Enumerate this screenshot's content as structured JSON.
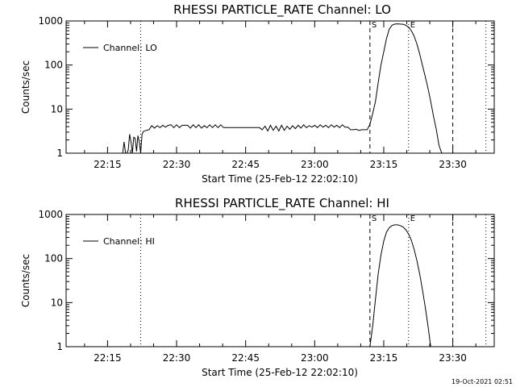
{
  "footer_stamp": "19-Oct-2021 02:51",
  "chart_data": [
    {
      "type": "line",
      "title": "RHESSI PARTICLE_RATE Channel: LO",
      "xlabel": "Start Time (25-Feb-12 22:02:10)",
      "ylabel": "Counts/sec",
      "yscale": "log",
      "xlim": [
        22.1,
        23.65
      ],
      "ylim": [
        1,
        1000
      ],
      "x_ticks": [
        {
          "value": 22.25,
          "label": "22:15"
        },
        {
          "value": 22.5,
          "label": "22:30"
        },
        {
          "value": 22.75,
          "label": "22:45"
        },
        {
          "value": 23.0,
          "label": "23:00"
        },
        {
          "value": 23.25,
          "label": "23:15"
        },
        {
          "value": 23.5,
          "label": "23:30"
        }
      ],
      "y_ticks": [
        {
          "value": 1,
          "label": "1"
        },
        {
          "value": 10,
          "label": "10"
        },
        {
          "value": 100,
          "label": "100"
        },
        {
          "value": 1000,
          "label": "1000"
        }
      ],
      "legend": {
        "label": "Channel: LO",
        "placement": "top-left"
      },
      "vlines": [
        {
          "x": 22.37,
          "style": "dotted",
          "label": ""
        },
        {
          "x": 23.2,
          "style": "dashed",
          "label": "S"
        },
        {
          "x": 23.34,
          "style": "dotted",
          "label": "E"
        },
        {
          "x": 23.5,
          "style": "dashed",
          "label": ""
        },
        {
          "x": 23.62,
          "style": "dotted",
          "label": ""
        }
      ],
      "series": [
        {
          "name": "Channel: LO",
          "x": [
            22.3,
            22.305,
            22.31,
            22.315,
            22.32,
            22.325,
            22.33,
            22.335,
            22.34,
            22.345,
            22.35,
            22.355,
            22.36,
            22.365,
            22.37,
            22.375,
            22.38,
            22.39,
            22.4,
            22.41,
            22.42,
            22.43,
            22.44,
            22.45,
            22.46,
            22.47,
            22.48,
            22.49,
            22.5,
            22.51,
            22.52,
            22.53,
            22.54,
            22.55,
            22.56,
            22.57,
            22.58,
            22.59,
            22.6,
            22.61,
            22.62,
            22.63,
            22.64,
            22.65,
            22.66,
            22.67,
            22.68,
            22.69,
            22.7,
            22.72,
            22.74,
            22.76,
            22.78,
            22.8,
            22.81,
            22.82,
            22.83,
            22.84,
            22.85,
            22.86,
            22.87,
            22.88,
            22.89,
            22.9,
            22.91,
            22.92,
            22.93,
            22.94,
            22.95,
            22.96,
            22.97,
            22.98,
            22.99,
            23.0,
            23.01,
            23.02,
            23.03,
            23.04,
            23.05,
            23.06,
            23.07,
            23.08,
            23.09,
            23.1,
            23.11,
            23.12,
            23.13,
            23.14,
            23.15,
            23.16,
            23.17,
            23.18,
            23.19,
            23.2,
            23.21,
            23.22,
            23.23,
            23.24,
            23.25,
            23.26,
            23.27,
            23.28,
            23.29,
            23.3,
            23.31,
            23.32,
            23.33,
            23.34,
            23.35,
            23.36,
            23.37,
            23.38,
            23.39,
            23.4,
            23.41,
            23.42,
            23.43,
            23.44,
            23.45,
            23.46,
            23.47,
            23.48,
            23.49,
            23.5
          ],
          "y": [
            1,
            1,
            1.8,
            1,
            1,
            1.2,
            2.7,
            1.8,
            1,
            2.3,
            2.2,
            1.1,
            2.5,
            1.8,
            1,
            2.7,
            3.1,
            3.3,
            3.4,
            4.2,
            3.7,
            4.2,
            3.8,
            4.3,
            3.9,
            4.3,
            4.4,
            3.8,
            4.4,
            3.8,
            4.3,
            4.3,
            4.3,
            3.7,
            4.4,
            3.8,
            4.4,
            3.7,
            4.2,
            3.8,
            4.4,
            3.8,
            4.4,
            3.8,
            4.4,
            3.8,
            3.8,
            3.8,
            3.8,
            3.8,
            3.8,
            3.8,
            3.8,
            3.8,
            3.4,
            4.1,
            3.2,
            4.3,
            3.3,
            4.1,
            3.2,
            4.3,
            3.3,
            4.1,
            3.5,
            4.2,
            3.6,
            4.3,
            3.7,
            4.4,
            3.8,
            4.2,
            3.9,
            4.3,
            3.8,
            4.4,
            3.9,
            4.3,
            3.8,
            4.4,
            3.9,
            4.3,
            3.8,
            4.4,
            3.9,
            3.9,
            3.4,
            3.4,
            3.5,
            3.3,
            3.4,
            3.4,
            3.4,
            4.5,
            8,
            15,
            40,
            100,
            200,
            400,
            650,
            800,
            850,
            860,
            850,
            840,
            800,
            720,
            600,
            450,
            300,
            180,
            100,
            55,
            30,
            15,
            7,
            3.5,
            1.5,
            1,
            1,
            1,
            1,
            1
          ]
        }
      ]
    },
    {
      "type": "line",
      "title": "RHESSI PARTICLE_RATE Channel: HI",
      "xlabel": "Start Time (25-Feb-12 22:02:10)",
      "ylabel": "Counts/sec",
      "yscale": "log",
      "xlim": [
        22.1,
        23.65
      ],
      "ylim": [
        1,
        1000
      ],
      "x_ticks": [
        {
          "value": 22.25,
          "label": "22:15"
        },
        {
          "value": 22.5,
          "label": "22:30"
        },
        {
          "value": 22.75,
          "label": "22:45"
        },
        {
          "value": 23.0,
          "label": "23:00"
        },
        {
          "value": 23.25,
          "label": "23:15"
        },
        {
          "value": 23.5,
          "label": "23:30"
        }
      ],
      "y_ticks": [
        {
          "value": 1,
          "label": "1"
        },
        {
          "value": 10,
          "label": "10"
        },
        {
          "value": 100,
          "label": "100"
        },
        {
          "value": 1000,
          "label": "1000"
        }
      ],
      "legend": {
        "label": "Channel: HI",
        "placement": "top-left"
      },
      "vlines": [
        {
          "x": 22.37,
          "style": "dotted",
          "label": ""
        },
        {
          "x": 23.2,
          "style": "dashed",
          "label": "S"
        },
        {
          "x": 23.34,
          "style": "dotted",
          "label": "E"
        },
        {
          "x": 23.5,
          "style": "dashed",
          "label": ""
        },
        {
          "x": 23.62,
          "style": "dotted",
          "label": ""
        }
      ],
      "series": [
        {
          "name": "Channel: HI",
          "x": [
            23.2,
            23.21,
            23.22,
            23.23,
            23.24,
            23.25,
            23.26,
            23.27,
            23.28,
            23.29,
            23.3,
            23.31,
            23.32,
            23.33,
            23.34,
            23.35,
            23.36,
            23.37,
            23.38,
            23.39,
            23.4,
            23.41,
            23.42,
            23.43,
            23.44,
            23.45
          ],
          "y": [
            1,
            3,
            12,
            45,
            120,
            250,
            400,
            500,
            560,
            580,
            580,
            560,
            520,
            450,
            360,
            260,
            160,
            90,
            45,
            20,
            8,
            3,
            1,
            1,
            1,
            1
          ]
        }
      ]
    }
  ]
}
